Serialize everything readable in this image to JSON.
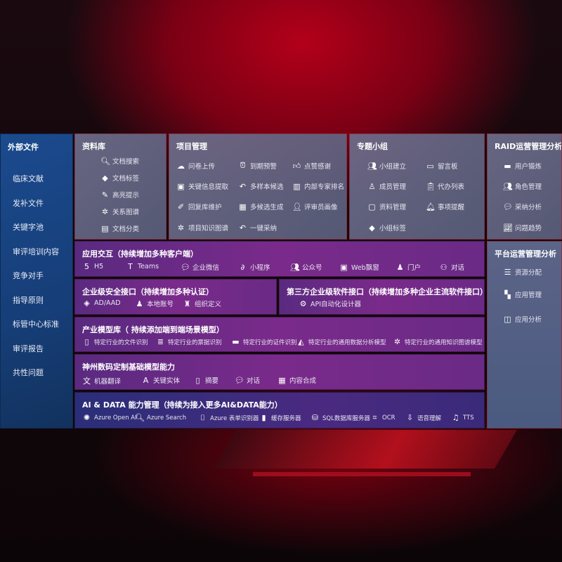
{
  "sidebar": {
    "title": "外部文件",
    "items": [
      "临床文献",
      "发补文件",
      "关键字池",
      "审评培训内容",
      "竞争对手",
      "指导原则",
      "标管中心标准",
      "审评报告",
      "共性问题"
    ]
  },
  "panels": {
    "library": {
      "title": "资料库",
      "items": [
        {
          "label": "文档搜索",
          "icon": "doc-search-icon"
        },
        {
          "label": "文档标签",
          "icon": "tag-icon"
        },
        {
          "label": "高亮提示",
          "icon": "pen-icon"
        },
        {
          "label": "关系图谱",
          "icon": "graph-icon"
        },
        {
          "label": "文档分类",
          "icon": "doc-category-icon"
        }
      ]
    },
    "project": {
      "title": "项目管理",
      "items": [
        {
          "label": "问卷上传",
          "icon": "cloud-upload-icon"
        },
        {
          "label": "到期预警",
          "icon": "alarm-icon"
        },
        {
          "label": "点赞感谢",
          "icon": "thumbs-up-icon"
        },
        {
          "label": "关键信息提取",
          "icon": "window-icon"
        },
        {
          "label": "多样本候选",
          "icon": "reply-icon"
        },
        {
          "label": "内部专家排名",
          "icon": "ranking-icon"
        },
        {
          "label": "回复库维护",
          "icon": "edit-icon"
        },
        {
          "label": "多候选生成",
          "icon": "puzzle-icon"
        },
        {
          "label": "评审员画像",
          "icon": "user-icon"
        },
        {
          "label": "项目知识图谱",
          "icon": "graph-icon"
        },
        {
          "label": "一键采纳",
          "icon": "reply-icon"
        }
      ]
    },
    "group": {
      "title": "专题小组",
      "items": [
        {
          "label": "小组建立",
          "icon": "group-icon"
        },
        {
          "label": "留言板",
          "icon": "bbs-icon"
        },
        {
          "label": "成员管理",
          "icon": "user-add-icon"
        },
        {
          "label": "代办列表",
          "icon": "clipboard-icon"
        },
        {
          "label": "资料管理",
          "icon": "folder-icon"
        },
        {
          "label": "事项提醒",
          "icon": "bell-icon"
        },
        {
          "label": "小组标签",
          "icon": "tag-icon"
        }
      ]
    },
    "raid": {
      "title": "RAID运营管理分析",
      "items": [
        {
          "label": "用户锻炼",
          "icon": "id-card-icon"
        },
        {
          "label": "角色管理",
          "icon": "group-icon"
        },
        {
          "label": "采纳分析",
          "icon": "qa-icon"
        },
        {
          "label": "问题趋势",
          "icon": "trend-icon"
        }
      ]
    },
    "platform": {
      "title": "平台运营管理分析",
      "items": [
        {
          "label": "资源分配",
          "icon": "checklist-icon"
        },
        {
          "label": "应用管理",
          "icon": "apps-icon"
        },
        {
          "label": "应用分析",
          "icon": "analysis-icon"
        }
      ]
    },
    "interaction": {
      "title": "应用交互（持续增加多种客户端）",
      "items": [
        {
          "label": "H5",
          "icon": "html5-icon"
        },
        {
          "label": "Teams",
          "icon": "teams-icon"
        },
        {
          "label": "企业微信",
          "icon": "wecom-icon"
        },
        {
          "label": "小程序",
          "icon": "miniprogram-icon"
        },
        {
          "label": "公众号",
          "icon": "group-icon"
        },
        {
          "label": "Web飘窗",
          "icon": "window-icon"
        },
        {
          "label": "门户",
          "icon": "portal-icon"
        },
        {
          "label": "对话",
          "icon": "chat-users-icon"
        }
      ]
    },
    "security": {
      "title": "企业级安全接口（持续增加多种认证）",
      "items": [
        {
          "label": "AD/AAD",
          "icon": "diamond-icon"
        },
        {
          "label": "本地账号",
          "icon": "user-lock-icon"
        },
        {
          "label": "组织定义",
          "icon": "org-icon"
        }
      ]
    },
    "thirdparty": {
      "title": "第三方企业级软件接口（持续增加多种企业主流软件接口）",
      "items": [
        {
          "label": "API自动化设计器",
          "icon": "gear-icon"
        }
      ]
    },
    "industry": {
      "title": "产业模型库（ 持续添加端到端场景模型）",
      "items": [
        {
          "label": "特定行业的文件识别",
          "icon": "file-icon"
        },
        {
          "label": "特定行业的票据识别",
          "icon": "receipt-icon"
        },
        {
          "label": "特定行业的证件识别",
          "icon": "id-card-icon"
        },
        {
          "label": "特定行业的通用数据分析模型",
          "icon": "chart-icon"
        },
        {
          "label": "特定行业的通用知识图谱模型",
          "icon": "graph-icon"
        }
      ]
    },
    "foundation": {
      "title": "神州数码定制基础模型能力",
      "items": [
        {
          "label": "机器翻译",
          "icon": "translate-icon"
        },
        {
          "label": "关键实体",
          "icon": "entity-icon"
        },
        {
          "label": "摘要",
          "icon": "doc-icon"
        },
        {
          "label": "对话",
          "icon": "chat-icon"
        },
        {
          "label": "内容合成",
          "icon": "puzzle-icon"
        }
      ]
    },
    "aidata": {
      "title": "AI & DATA 能力管理（持续为接入更多AI&DATA能力）",
      "items": [
        {
          "label": "Azure Open AI",
          "icon": "openai-icon"
        },
        {
          "label": "Azure Search",
          "icon": "doc-search-icon"
        },
        {
          "label": "Azure 表单识别器",
          "icon": "form-icon"
        },
        {
          "label": "缓存服务器",
          "icon": "cache-icon"
        },
        {
          "label": "SQL数据库服务器",
          "icon": "database-icon"
        },
        {
          "label": "OCR",
          "icon": "ocr-icon"
        },
        {
          "label": "语音理解",
          "icon": "speech-icon"
        },
        {
          "label": "TTS",
          "icon": "tts-icon"
        }
      ]
    }
  }
}
